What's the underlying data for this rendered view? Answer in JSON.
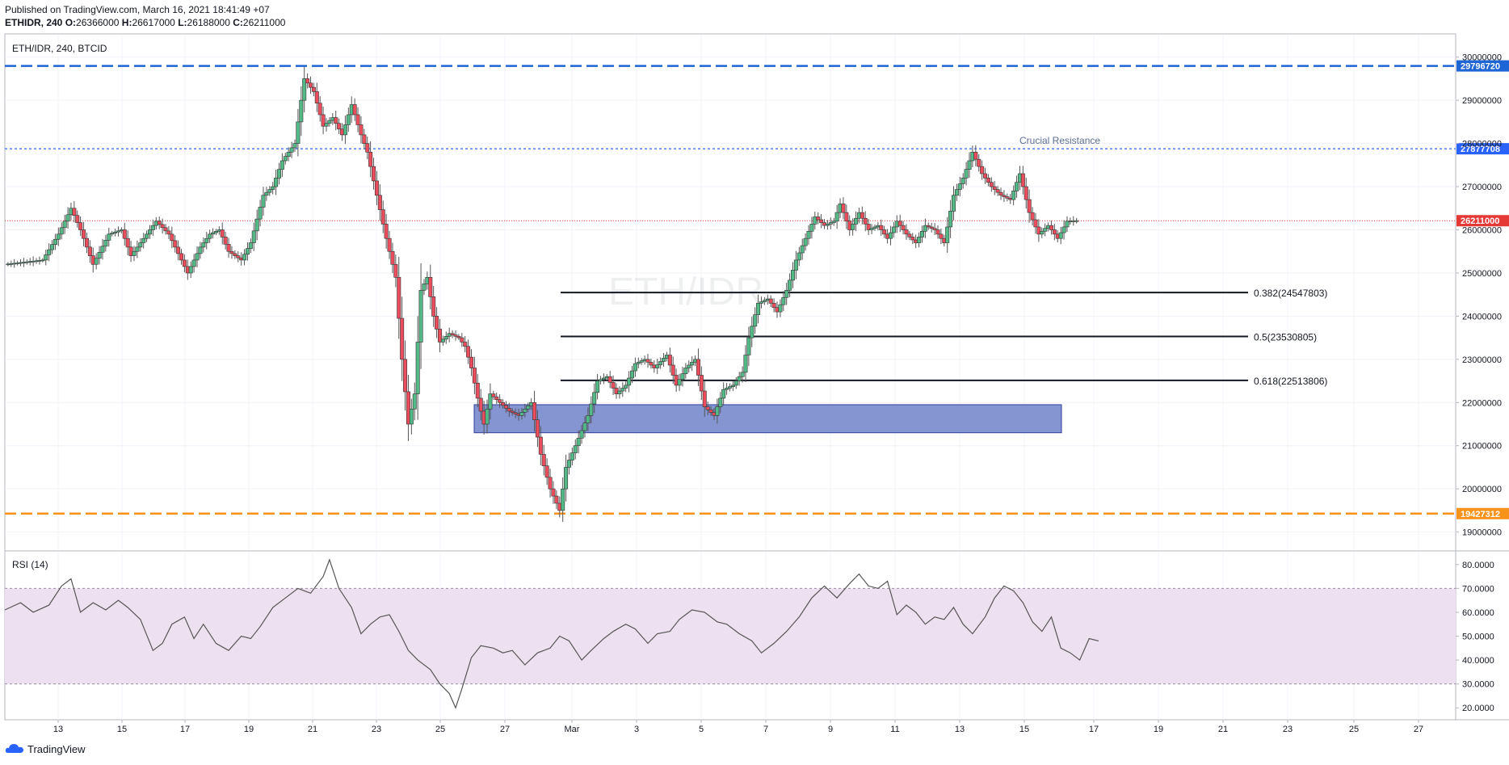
{
  "header": {
    "published": "Published on TradingView.com, March 16, 2021 18:41:49 +07",
    "symbol": "ETHIDR, 240",
    "o_label": "O:",
    "o_value": "26366000",
    "h_label": "H:",
    "h_value": "26617000",
    "l_label": "L:",
    "l_value": "26188000",
    "c_label": "C:",
    "c_value": "26211000"
  },
  "pane_title": "ETH/IDR, 240, BTCID",
  "watermark": "ETH/IDR",
  "footer": {
    "brand": "TradingView"
  },
  "colors": {
    "up": "#53b987",
    "down": "#eb4d5c",
    "wick": "#555555",
    "resistance_top": "#1e66d6",
    "resistance_mid": "#2962ff",
    "support": "#f7931a",
    "last_price": "#e53935",
    "zone_fill": "#8595d1",
    "zone_stroke": "#2e3f9e",
    "rsi_band": "#ede1f1",
    "rsi_line": "#555555"
  },
  "chart_data": [
    {
      "type": "candlestick",
      "title": "ETH/IDR, 240, BTCID",
      "x_tick_labels": [
        "13",
        "15",
        "17",
        "19",
        "21",
        "23",
        "25",
        "27",
        "Mar",
        "3",
        "5",
        "7",
        "9",
        "11",
        "13",
        "15",
        "17",
        "19",
        "21",
        "23",
        "25",
        "27"
      ],
      "y_tick_labels": [
        "30000000",
        "29000000",
        "28000000",
        "27000000",
        "26000000",
        "25000000",
        "24000000",
        "23000000",
        "22000000",
        "21000000",
        "20000000",
        "19000000"
      ],
      "ylim": [
        18600000,
        30500000
      ],
      "grid": true,
      "horizontal_lines": [
        {
          "name": "top",
          "value": 29796720,
          "label": "29796720",
          "style": "dashed"
        },
        {
          "name": "crucial-resistance",
          "value": 27877708,
          "label": "27877708",
          "style": "dotted",
          "annotation": "Crucial Resistance"
        },
        {
          "name": "last-price",
          "value": 26211000,
          "label": "26211000",
          "style": "dotted"
        },
        {
          "name": "support",
          "value": 19427312,
          "label": "19427312",
          "style": "dashed"
        }
      ],
      "fibonacci": [
        {
          "ratio": "0.382",
          "value": 24547803,
          "label": "0.382(24547803)"
        },
        {
          "ratio": "0.5",
          "value": 23530805,
          "label": "0.5(23530805)"
        },
        {
          "ratio": "0.618",
          "value": 22513806,
          "label": "0.618(22513806)"
        }
      ],
      "demand_zone": {
        "from": 21300000,
        "to": 21950000
      },
      "close_path": [
        [
          0,
          25200000
        ],
        [
          24,
          25300000
        ],
        [
          34,
          25900000
        ],
        [
          42,
          26500000
        ],
        [
          48,
          26000000
        ],
        [
          56,
          25200000
        ],
        [
          66,
          25900000
        ],
        [
          74,
          26000000
        ],
        [
          80,
          25400000
        ],
        [
          88,
          25800000
        ],
        [
          96,
          26200000
        ],
        [
          104,
          25900000
        ],
        [
          116,
          25000000
        ],
        [
          124,
          25600000
        ],
        [
          130,
          25900000
        ],
        [
          136,
          26000000
        ],
        [
          142,
          25500000
        ],
        [
          150,
          25300000
        ],
        [
          156,
          25700000
        ],
        [
          164,
          26800000
        ],
        [
          170,
          27000000
        ],
        [
          176,
          27600000
        ],
        [
          184,
          28000000
        ],
        [
          190,
          29500000
        ],
        [
          196,
          29200000
        ],
        [
          202,
          28400000
        ],
        [
          208,
          28600000
        ],
        [
          214,
          28200000
        ],
        [
          220,
          28900000
        ],
        [
          226,
          28200000
        ],
        [
          230,
          27800000
        ],
        [
          236,
          26800000
        ],
        [
          242,
          25800000
        ],
        [
          248,
          24900000
        ],
        [
          252,
          23000000
        ],
        [
          256,
          21500000
        ],
        [
          260,
          22200000
        ],
        [
          264,
          24600000
        ],
        [
          268,
          24900000
        ],
        [
          272,
          24000000
        ],
        [
          276,
          23400000
        ],
        [
          282,
          23600000
        ],
        [
          288,
          23500000
        ],
        [
          292,
          23300000
        ],
        [
          296,
          22800000
        ],
        [
          300,
          22100000
        ],
        [
          304,
          21500000
        ],
        [
          308,
          22200000
        ],
        [
          314,
          22000000
        ],
        [
          320,
          21800000
        ],
        [
          326,
          21700000
        ],
        [
          334,
          22000000
        ],
        [
          340,
          20800000
        ],
        [
          346,
          20000000
        ],
        [
          352,
          19500000
        ],
        [
          356,
          20500000
        ],
        [
          362,
          21000000
        ],
        [
          370,
          21700000
        ],
        [
          376,
          22500000
        ],
        [
          382,
          22600000
        ],
        [
          388,
          22200000
        ],
        [
          394,
          22400000
        ],
        [
          400,
          22900000
        ],
        [
          406,
          23000000
        ],
        [
          412,
          22800000
        ],
        [
          420,
          23100000
        ],
        [
          426,
          22400000
        ],
        [
          432,
          22800000
        ],
        [
          438,
          23000000
        ],
        [
          444,
          21900000
        ],
        [
          450,
          21700000
        ],
        [
          456,
          22300000
        ],
        [
          462,
          22400000
        ],
        [
          468,
          22700000
        ],
        [
          472,
          23500000
        ],
        [
          478,
          24300000
        ],
        [
          484,
          24400000
        ],
        [
          490,
          24100000
        ],
        [
          496,
          24600000
        ],
        [
          502,
          25300000
        ],
        [
          508,
          25800000
        ],
        [
          514,
          26300000
        ],
        [
          520,
          26100000
        ],
        [
          526,
          26200000
        ],
        [
          530,
          26600000
        ],
        [
          536,
          26000000
        ],
        [
          542,
          26400000
        ],
        [
          548,
          26000000
        ],
        [
          554,
          26100000
        ],
        [
          560,
          25800000
        ],
        [
          566,
          26200000
        ],
        [
          572,
          25900000
        ],
        [
          578,
          25700000
        ],
        [
          584,
          26100000
        ],
        [
          590,
          26000000
        ],
        [
          596,
          25700000
        ],
        [
          602,
          26800000
        ],
        [
          608,
          27200000
        ],
        [
          614,
          27800000
        ],
        [
          620,
          27300000
        ],
        [
          626,
          27000000
        ],
        [
          632,
          26800000
        ],
        [
          638,
          26700000
        ],
        [
          644,
          27300000
        ],
        [
          650,
          26400000
        ],
        [
          656,
          25900000
        ],
        [
          662,
          26100000
        ],
        [
          668,
          25800000
        ],
        [
          674,
          26200000
        ],
        [
          680,
          26211000
        ]
      ]
    },
    {
      "type": "line",
      "title": "RSI (14)",
      "y_tick_labels": [
        "80.0000",
        "70.0000",
        "60.0000",
        "50.0000",
        "40.0000",
        "30.0000",
        "20.0000"
      ],
      "ylim": [
        15,
        85
      ],
      "band": [
        30,
        70
      ],
      "values": [
        [
          0,
          61
        ],
        [
          10,
          64
        ],
        [
          18,
          60
        ],
        [
          28,
          63
        ],
        [
          36,
          71
        ],
        [
          42,
          74
        ],
        [
          48,
          60
        ],
        [
          56,
          64
        ],
        [
          64,
          61
        ],
        [
          72,
          65
        ],
        [
          78,
          62
        ],
        [
          86,
          57
        ],
        [
          94,
          44
        ],
        [
          100,
          47
        ],
        [
          106,
          55
        ],
        [
          114,
          58
        ],
        [
          120,
          49
        ],
        [
          126,
          55
        ],
        [
          134,
          47
        ],
        [
          142,
          44
        ],
        [
          150,
          50
        ],
        [
          156,
          49
        ],
        [
          162,
          54
        ],
        [
          170,
          62
        ],
        [
          178,
          66
        ],
        [
          186,
          70
        ],
        [
          194,
          68
        ],
        [
          202,
          75
        ],
        [
          206,
          82
        ],
        [
          212,
          70
        ],
        [
          220,
          62
        ],
        [
          226,
          51
        ],
        [
          232,
          55
        ],
        [
          238,
          58
        ],
        [
          244,
          59
        ],
        [
          250,
          52
        ],
        [
          256,
          44
        ],
        [
          262,
          40
        ],
        [
          270,
          36
        ],
        [
          276,
          30
        ],
        [
          282,
          26
        ],
        [
          286,
          20
        ],
        [
          290,
          28
        ],
        [
          296,
          41
        ],
        [
          302,
          46
        ],
        [
          310,
          45
        ],
        [
          316,
          43
        ],
        [
          322,
          44
        ],
        [
          330,
          38
        ],
        [
          338,
          43
        ],
        [
          346,
          45
        ],
        [
          352,
          50
        ],
        [
          358,
          48
        ],
        [
          366,
          40
        ],
        [
          372,
          44
        ],
        [
          380,
          49
        ],
        [
          386,
          52
        ],
        [
          394,
          55
        ],
        [
          400,
          53
        ],
        [
          408,
          47
        ],
        [
          414,
          51
        ],
        [
          422,
          52
        ],
        [
          428,
          57
        ],
        [
          436,
          61
        ],
        [
          444,
          60
        ],
        [
          452,
          56
        ],
        [
          458,
          55
        ],
        [
          466,
          51
        ],
        [
          474,
          48
        ],
        [
          480,
          43
        ],
        [
          488,
          47
        ],
        [
          496,
          52
        ],
        [
          504,
          58
        ],
        [
          512,
          66
        ],
        [
          520,
          71
        ],
        [
          528,
          66
        ],
        [
          536,
          72
        ],
        [
          542,
          76
        ],
        [
          548,
          71
        ],
        [
          554,
          70
        ],
        [
          560,
          73
        ],
        [
          566,
          59
        ],
        [
          572,
          63
        ],
        [
          578,
          60
        ],
        [
          584,
          55
        ],
        [
          590,
          58
        ],
        [
          596,
          57
        ],
        [
          602,
          62
        ],
        [
          608,
          55
        ],
        [
          614,
          51
        ],
        [
          622,
          58
        ],
        [
          628,
          66
        ],
        [
          634,
          71
        ],
        [
          640,
          69
        ],
        [
          646,
          64
        ],
        [
          652,
          56
        ],
        [
          658,
          52
        ],
        [
          664,
          58
        ],
        [
          670,
          45
        ],
        [
          676,
          43
        ],
        [
          682,
          40
        ],
        [
          688,
          49
        ],
        [
          694,
          48
        ]
      ]
    }
  ]
}
